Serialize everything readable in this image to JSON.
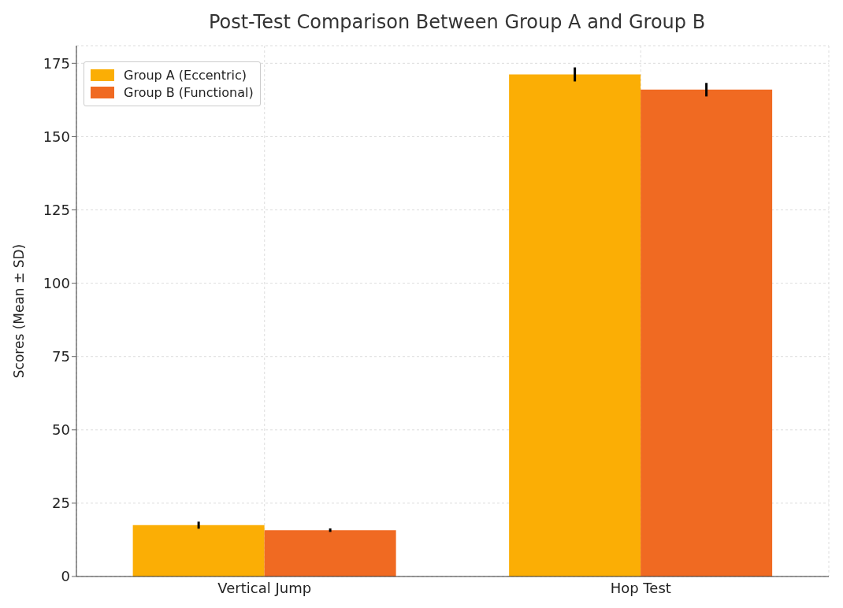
{
  "chart_data": {
    "type": "bar",
    "title": "Post-Test Comparison Between Group A and Group B",
    "ylabel": "Scores (Mean ± SD)",
    "categories": [
      "Vertical Jump",
      "Hop Test"
    ],
    "series": [
      {
        "name": "Group A (Eccentric)",
        "color": "#fbae05",
        "values": [
          17.5,
          171.2
        ],
        "errors": [
          1.2,
          2.4
        ]
      },
      {
        "name": "Group B (Functional)",
        "color": "#f06a22",
        "values": [
          15.8,
          166
        ],
        "errors": [
          0.6,
          2.3
        ]
      }
    ],
    "ylim": [
      0,
      181
    ],
    "yticks": [
      0,
      25,
      50,
      75,
      100,
      125,
      150,
      175
    ],
    "grid": true,
    "legend": "top left"
  }
}
